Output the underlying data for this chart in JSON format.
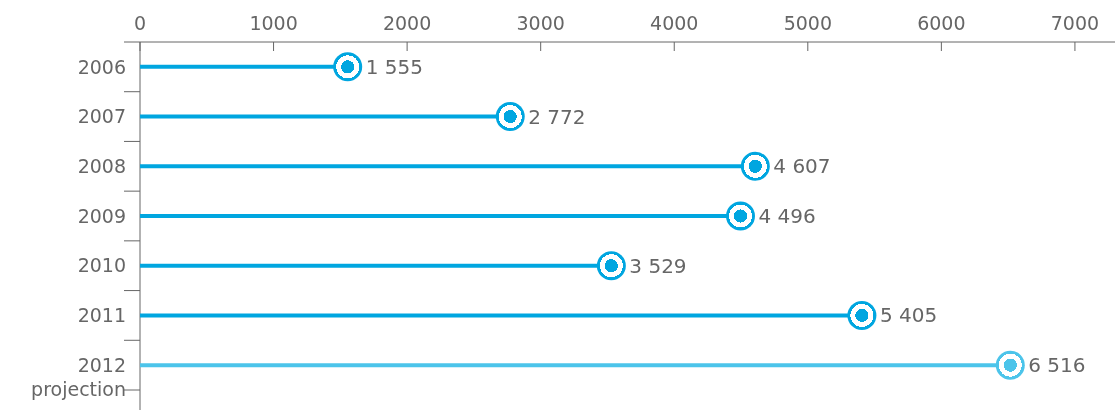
{
  "chart_data": {
    "type": "lollipop",
    "orientation": "horizontal",
    "categories": [
      "2006",
      "2007",
      "2008",
      "2009",
      "2010",
      "2011",
      "2012\nprojection"
    ],
    "values": [
      1555,
      2772,
      4607,
      4496,
      3529,
      5405,
      6516
    ],
    "value_labels": [
      "1 555",
      "2 772",
      "4 607",
      "4 496",
      "3 529",
      "5 405",
      "6 516"
    ],
    "colors": [
      "#00a6e0",
      "#00a6e0",
      "#00a6e0",
      "#00a6e0",
      "#00a6e0",
      "#00a6e0",
      "#4cc4ea"
    ],
    "xlim": [
      0,
      7300
    ],
    "xticks": [
      0,
      1000,
      2000,
      3000,
      4000,
      5000,
      6000,
      7000
    ],
    "marker": "circle"
  }
}
